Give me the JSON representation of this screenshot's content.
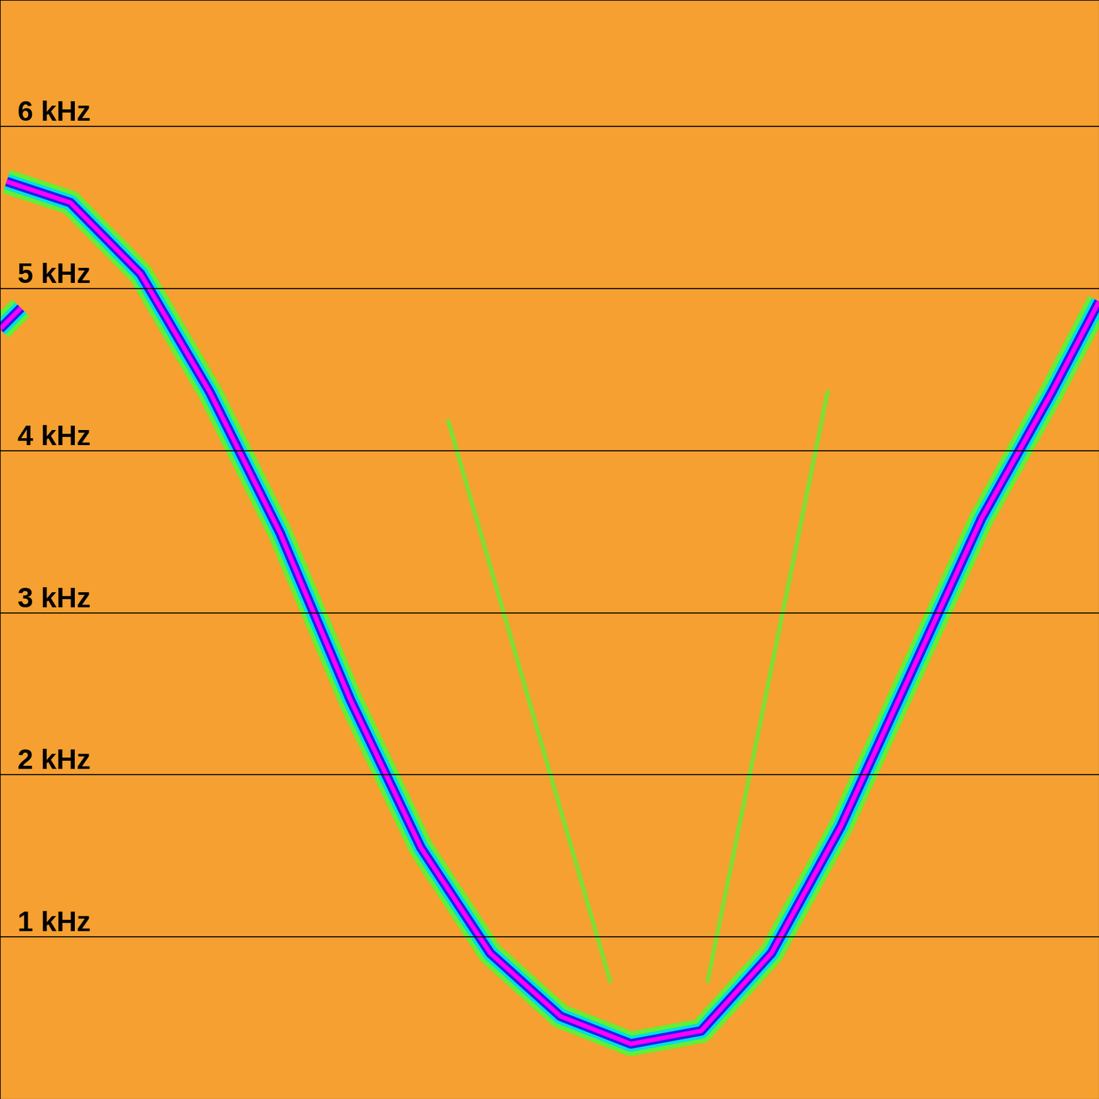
{
  "chart_data": {
    "type": "spectrogram",
    "xlim": [
      0,
      1
    ],
    "ylim": [
      0,
      6.78
    ],
    "yticks": [
      {
        "value": 1,
        "label": "1 kHz"
      },
      {
        "value": 2,
        "label": "2 kHz"
      },
      {
        "value": 3,
        "label": "3 kHz"
      },
      {
        "value": 4,
        "label": "4 kHz"
      },
      {
        "value": 5,
        "label": "5 kHz"
      },
      {
        "value": 6,
        "label": "6 kHz"
      }
    ],
    "grid": true,
    "tick_labels": "y",
    "series": [
      {
        "color": "#ff00ff",
        "x": [
          0.006,
          0.064,
          0.128,
          0.191,
          0.255,
          0.319,
          0.383,
          0.446,
          0.51,
          0.574,
          0.638,
          0.702,
          0.765,
          0.829,
          0.893,
          0.957,
          1.0
        ],
        "values": [
          5.66,
          5.53,
          5.09,
          4.36,
          3.49,
          2.46,
          1.55,
          0.9,
          0.51,
          0.34,
          0.42,
          0.9,
          1.68,
          2.63,
          3.58,
          4.36,
          4.92
        ]
      },
      {
        "color": "#ff00ff",
        "x": [
          0.0,
          0.019
        ],
        "values": [
          4.75,
          4.88
        ]
      },
      {
        "color": "#66ee33",
        "x": [
          0.408,
          0.555
        ],
        "values": [
          4.18,
          0.73
        ]
      },
      {
        "color": "#66ee33",
        "x": [
          0.753,
          0.644
        ],
        "values": [
          4.36,
          0.73
        ]
      }
    ]
  }
}
